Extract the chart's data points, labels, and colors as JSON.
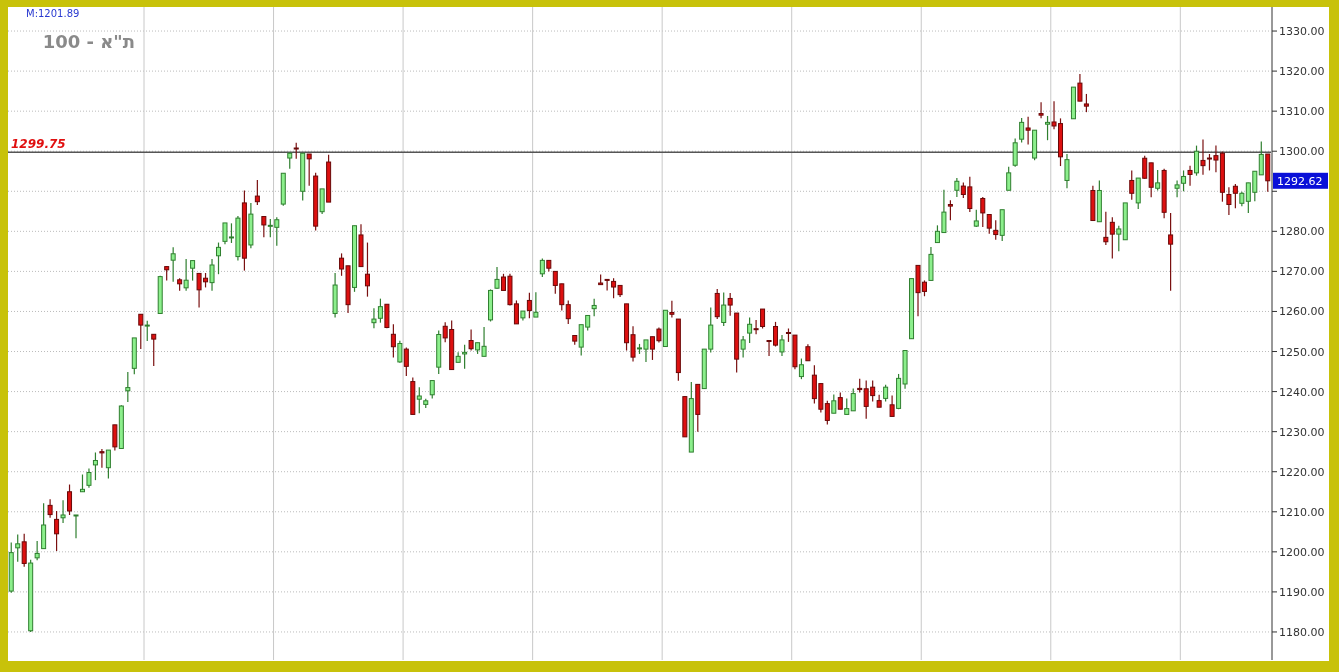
{
  "chart_data": {
    "type": "candlestick",
    "title": "ת\"א - 100",
    "annotations": [
      "M:1201.89",
      "1292.62"
    ],
    "categories": [
      null,
      null,
      null,
      null,
      null,
      null,
      null,
      null,
      null,
      null,
      null,
      null,
      null,
      null,
      null,
      null,
      null,
      null,
      null,
      null,
      null,
      null,
      null,
      null,
      null,
      null,
      null,
      null,
      null,
      null,
      null,
      null,
      null,
      null,
      null,
      null,
      null,
      null,
      null,
      null,
      null,
      null,
      null,
      null,
      null,
      null,
      null,
      null,
      null,
      null,
      null,
      null,
      null,
      null,
      null,
      null,
      null,
      null,
      null,
      null,
      null,
      null,
      null,
      null,
      null,
      null,
      null,
      null,
      null,
      null,
      null,
      null,
      null,
      null,
      null,
      null,
      null,
      null,
      null,
      null,
      null,
      null,
      null,
      null,
      null,
      null,
      null,
      null,
      null,
      null,
      null,
      null,
      null,
      null,
      null,
      null,
      null,
      null,
      null,
      null,
      null,
      null,
      null,
      null,
      null,
      null,
      null,
      null,
      null,
      null,
      null,
      null,
      null,
      null,
      null,
      null,
      null,
      null,
      null,
      null,
      null,
      null,
      null,
      null,
      null,
      null,
      null,
      null,
      null,
      null,
      null,
      null,
      null,
      null,
      null,
      null,
      null,
      null,
      null,
      null,
      null,
      null,
      null,
      null,
      null,
      null,
      null,
      null,
      null,
      null,
      null,
      null,
      null,
      null,
      null,
      null,
      null,
      null,
      null,
      null,
      null,
      null,
      null,
      null,
      null,
      null,
      null,
      null,
      null,
      null,
      null,
      null,
      null,
      null,
      null,
      null,
      null,
      null,
      null,
      null,
      null,
      null,
      null,
      null,
      null,
      null,
      null,
      null,
      null,
      null,
      null,
      null,
      null,
      null,
      null
    ],
    "ohlc": [
      [
        1190.2,
        1202.3,
        1189.8,
        1199.8
      ],
      [
        1201,
        1204.3,
        1197.5,
        1202
      ],
      [
        1202.5,
        1204.5,
        1196.3,
        1197.1
      ],
      [
        1180.3,
        1198,
        1180,
        1197.2
      ],
      [
        1198.5,
        1202.7,
        1197.9,
        1199.6
      ],
      [
        1200.8,
        1212.1,
        1200.8,
        1206.7
      ],
      [
        1211.6,
        1213.1,
        1208.5,
        1209.3
      ],
      [
        1208.1,
        1210.2,
        1200.2,
        1204.5
      ],
      [
        1208.5,
        1212.9,
        1207.2,
        1209.2
      ],
      [
        1215,
        1216.8,
        1209.2,
        1210.2
      ],
      [
        1209,
        1209.2,
        1203.4,
        1209.2
      ],
      [
        1215,
        1219.3,
        1215,
        1215.6
      ],
      [
        1216.6,
        1220.8,
        1216,
        1219.8
      ],
      [
        1221.7,
        1224.8,
        1217.9,
        1222.8
      ],
      [
        1225,
        1225.7,
        1221,
        1224.7
      ],
      [
        1221,
        1225.4,
        1218.3,
        1225.4
      ],
      [
        1231.7,
        1231.7,
        1225.3,
        1226.2
      ],
      [
        1225.8,
        1236.6,
        1225.8,
        1236.4
      ],
      [
        1240.2,
        1244.9,
        1237.4,
        1241
      ],
      [
        1245.8,
        1253.4,
        1244.3,
        1253.4
      ],
      [
        1259.3,
        1259.3,
        1250.6,
        1256.6
      ],
      [
        1256.4,
        1257.7,
        1252.6,
        1256.6
      ],
      [
        1254.3,
        1254.3,
        1246.4,
        1253.1
      ],
      [
        1259.5,
        1268.9,
        1259.5,
        1268.7
      ],
      [
        1271.2,
        1271.3,
        1267.7,
        1270.4
      ],
      [
        1272.8,
        1276,
        1267.4,
        1274.4
      ],
      [
        1267.9,
        1268.3,
        1265.2,
        1266.9
      ],
      [
        1265.9,
        1273.1,
        1265.2,
        1267.8
      ],
      [
        1270.8,
        1272.7,
        1267.7,
        1272.7
      ],
      [
        1269.5,
        1269.5,
        1261,
        1265.4
      ],
      [
        1268.3,
        1269.6,
        1266,
        1267.4
      ],
      [
        1267.2,
        1273.1,
        1265.2,
        1271.6
      ],
      [
        1273.9,
        1277.2,
        1269.3,
        1276
      ],
      [
        1277.5,
        1282.1,
        1276.8,
        1282.1
      ],
      [
        1278.4,
        1282,
        1277.1,
        1278.6
      ],
      [
        1273.7,
        1283.8,
        1272.7,
        1283.3
      ],
      [
        1287.1,
        1290.2,
        1270.2,
        1273.3
      ],
      [
        1276.6,
        1287.1,
        1275.8,
        1284.3
      ],
      [
        1288.8,
        1292.8,
        1286.6,
        1287.4
      ],
      [
        1283.7,
        1283.7,
        1278.5,
        1281.6
      ],
      [
        1281.4,
        1283.1,
        1278.5,
        1281.5
      ],
      [
        1281,
        1283.5,
        1276.4,
        1282.9
      ],
      [
        1286.8,
        1294.5,
        1286.4,
        1294.5
      ],
      [
        1298.3,
        1299.8,
        1295.6,
        1299.5
      ],
      [
        1300.8,
        1302.1,
        1298.1,
        1300.6
      ],
      [
        1290,
        1299.5,
        1287.7,
        1299.5
      ],
      [
        1299.3,
        1299.3,
        1291.4,
        1298.1
      ],
      [
        1293.8,
        1294.6,
        1280.2,
        1281.3
      ],
      [
        1284.9,
        1290.6,
        1284.3,
        1290.6
      ],
      [
        1297.3,
        1299.1,
        1287.3,
        1287.3
      ],
      [
        1259.5,
        1269.6,
        1258.5,
        1266.6
      ],
      [
        1273.3,
        1274.5,
        1268.9,
        1270.6
      ],
      [
        1271.4,
        1271.4,
        1259.6,
        1261.7
      ],
      [
        1266,
        1281.4,
        1264.9,
        1281.4
      ],
      [
        1279.1,
        1281.8,
        1271.2,
        1271.2
      ],
      [
        1269.3,
        1277.2,
        1263.7,
        1266.4
      ],
      [
        1257.2,
        1260.8,
        1255.8,
        1258.1
      ],
      [
        1258.3,
        1263.2,
        1257.2,
        1261.2
      ],
      [
        1261.8,
        1261.8,
        1255.8,
        1256
      ],
      [
        1254.3,
        1256.8,
        1248.5,
        1251.2
      ],
      [
        1247.4,
        1252.7,
        1247.2,
        1252
      ],
      [
        1250.6,
        1251,
        1243.9,
        1246.3
      ],
      [
        1242.5,
        1243.5,
        1234.3,
        1234.3
      ],
      [
        1238.1,
        1241.1,
        1234.6,
        1238.9
      ],
      [
        1236.8,
        1238.2,
        1235.9,
        1237.7
      ],
      [
        1239.2,
        1242.75,
        1238.3,
        1242.75
      ],
      [
        1246.1,
        1255.25,
        1244.4,
        1254.25
      ],
      [
        1256.3,
        1257.3,
        1252.3,
        1253.4
      ],
      [
        1255.5,
        1257.75,
        1245.5,
        1245.5
      ],
      [
        1247.3,
        1249.8,
        1247.3,
        1248.8
      ],
      [
        1249.4,
        1251.7,
        1245.7,
        1249.8
      ],
      [
        1252.75,
        1255.5,
        1250.25,
        1250.7
      ],
      [
        1250.4,
        1252.2,
        1249.4,
        1252.2
      ],
      [
        1248.8,
        1256.1,
        1248.8,
        1251.3
      ],
      [
        1257.9,
        1265.5,
        1257.5,
        1265.25
      ],
      [
        1265.8,
        1271.1,
        1265.7,
        1268
      ],
      [
        1268.6,
        1269.4,
        1265.25,
        1265.25
      ],
      [
        1268.8,
        1269.4,
        1261.5,
        1261.7
      ],
      [
        1261.9,
        1262.75,
        1256.9,
        1256.9
      ],
      [
        1258.4,
        1260.1,
        1257.75,
        1260.1
      ],
      [
        1262.75,
        1264.7,
        1258.3,
        1260.25
      ],
      [
        1258.6,
        1264.8,
        1258.6,
        1259.8
      ],
      [
        1269.4,
        1273.2,
        1268.6,
        1272.75
      ],
      [
        1272.75,
        1272.75,
        1270,
        1270.8
      ],
      [
        1270,
        1270,
        1264.4,
        1266.5
      ],
      [
        1266.9,
        1266.9,
        1260.25,
        1261.7
      ],
      [
        1261.7,
        1262.75,
        1256.9,
        1258.2
      ],
      [
        1254,
        1254,
        1251.7,
        1252.6
      ],
      [
        1251.1,
        1256.7,
        1249,
        1256.7
      ],
      [
        1256.1,
        1259,
        1255.25,
        1259
      ],
      [
        1260.7,
        1263.2,
        1258.8,
        1261.5
      ],
      [
        1267.1,
        1269.2,
        1266.7,
        1266.7
      ],
      [
        1268,
        1268,
        1265.25,
        1267.75
      ],
      [
        1267.5,
        1268.3,
        1263.3,
        1266.1
      ],
      [
        1266.5,
        1266.5,
        1263.6,
        1264.2
      ],
      [
        1261.9,
        1261.9,
        1250.25,
        1252.2
      ],
      [
        1254.2,
        1256.3,
        1247.5,
        1248.6
      ],
      [
        1250.7,
        1251.9,
        1249.4,
        1250.9
      ],
      [
        1250.6,
        1252.9,
        1247.4,
        1252.9
      ],
      [
        1253.7,
        1253.7,
        1247.9,
        1250.6
      ],
      [
        1255.6,
        1256,
        1252.25,
        1252.7
      ],
      [
        1251.25,
        1260.3,
        1251.25,
        1260.3
      ],
      [
        1259.75,
        1262.7,
        1258.5,
        1259.3
      ],
      [
        1258.1,
        1258.1,
        1242.7,
        1244.75
      ],
      [
        1238.75,
        1238.9,
        1228.7,
        1228.7
      ],
      [
        1224.9,
        1242.4,
        1224.9,
        1238.25
      ],
      [
        1241.8,
        1241.8,
        1230,
        1234.3
      ],
      [
        1240.75,
        1250.6,
        1240.75,
        1250.6
      ],
      [
        1250.6,
        1261,
        1249.75,
        1256.6
      ],
      [
        1264.5,
        1265.6,
        1258.1,
        1258.7
      ],
      [
        1257.25,
        1264.75,
        1256.4,
        1261.6
      ],
      [
        1263.25,
        1264.6,
        1258.9,
        1261.6
      ],
      [
        1259.6,
        1259.6,
        1244.75,
        1248.1
      ],
      [
        1250.6,
        1253.9,
        1248.5,
        1252.9
      ],
      [
        1254.6,
        1258.5,
        1252.1,
        1256.8
      ],
      [
        1255.7,
        1257.9,
        1254.3,
        1255.5
      ],
      [
        1260.6,
        1260.6,
        1255.75,
        1256.25
      ],
      [
        1252.75,
        1252.75,
        1248.9,
        1252.6
      ],
      [
        1256.25,
        1257.4,
        1251.25,
        1251.6
      ],
      [
        1249.9,
        1254.1,
        1248.9,
        1252.9
      ],
      [
        1254.75,
        1255.75,
        1252.4,
        1254.6
      ],
      [
        1254.1,
        1254.1,
        1245.6,
        1246.2
      ],
      [
        1243.75,
        1248.25,
        1243.1,
        1246.7
      ],
      [
        1251.2,
        1251.8,
        1247.7,
        1247.7
      ],
      [
        1244.1,
        1246.6,
        1237,
        1238.25
      ],
      [
        1242,
        1242,
        1234.75,
        1235.6
      ],
      [
        1237,
        1237.7,
        1231.8,
        1232.8
      ],
      [
        1234.6,
        1239.3,
        1234.6,
        1237.7
      ],
      [
        1238.5,
        1239.75,
        1235.6,
        1235.6
      ],
      [
        1234.3,
        1238.25,
        1234.3,
        1235.75
      ],
      [
        1235.2,
        1240.75,
        1235.2,
        1239.5
      ],
      [
        1240.8,
        1243.2,
        1239.8,
        1240.5
      ],
      [
        1240.7,
        1242.75,
        1233.2,
        1236.3
      ],
      [
        1241.1,
        1242.75,
        1237.5,
        1239
      ],
      [
        1237.75,
        1239.2,
        1236.1,
        1236.1
      ],
      [
        1238.3,
        1241.7,
        1237.5,
        1241.1
      ],
      [
        1236.7,
        1239,
        1233.8,
        1233.8
      ],
      [
        1235.8,
        1244.4,
        1235.6,
        1243.3
      ],
      [
        1241.9,
        1250.25,
        1240.7,
        1250.25
      ],
      [
        1253.2,
        1268.2,
        1253.2,
        1268.2
      ],
      [
        1271.5,
        1271.5,
        1258.8,
        1264.7
      ],
      [
        1267.3,
        1267.75,
        1263.8,
        1265
      ],
      [
        1267.75,
        1276.1,
        1267.75,
        1274.25
      ],
      [
        1277.2,
        1281.5,
        1277.2,
        1280
      ],
      [
        1279.7,
        1290.4,
        1279.7,
        1284.8
      ],
      [
        1286.7,
        1287.75,
        1282.75,
        1286.3
      ],
      [
        1290.25,
        1293.3,
        1288.6,
        1292.5
      ],
      [
        1291.3,
        1292.2,
        1288.3,
        1289.2
      ],
      [
        1291.1,
        1293.6,
        1284.8,
        1285.7
      ],
      [
        1281.3,
        1285.4,
        1281.1,
        1282.6
      ],
      [
        1288.2,
        1288.6,
        1281.1,
        1284.6
      ],
      [
        1284.2,
        1284.2,
        1279.4,
        1280.8
      ],
      [
        1280.25,
        1282.75,
        1277.9,
        1279.2
      ],
      [
        1279,
        1285.4,
        1277.6,
        1285.4
      ],
      [
        1290.25,
        1296.1,
        1290.25,
        1294.6
      ],
      [
        1296.5,
        1303.2,
        1296.1,
        1302.1
      ],
      [
        1303,
        1308.3,
        1302.2,
        1307.2
      ],
      [
        1305.8,
        1308.6,
        1301.7,
        1305.25
      ],
      [
        1298.3,
        1305.25,
        1297.75,
        1305.25
      ],
      [
        1309.4,
        1312.2,
        1308.2,
        1309
      ],
      [
        1306.75,
        1308.8,
        1302.75,
        1307.2
      ],
      [
        1307.3,
        1312.5,
        1305.5,
        1306.3
      ],
      [
        1306.9,
        1308.2,
        1296.3,
        1298.6
      ],
      [
        1292.7,
        1299.3,
        1290.75,
        1297.9
      ],
      [
        1308.1,
        1316,
        1308.1,
        1316
      ],
      [
        1317,
        1319.3,
        1312.5,
        1312.5
      ],
      [
        1311.8,
        1314.3,
        1309.75,
        1311.25
      ],
      [
        1290.2,
        1291.4,
        1282.7,
        1282.7
      ],
      [
        1282.4,
        1292.7,
        1282.4,
        1290.2
      ],
      [
        1278.5,
        1284.9,
        1276.6,
        1277.4
      ],
      [
        1282.25,
        1283.5,
        1273.25,
        1279.3
      ],
      [
        1279.3,
        1281.4,
        1275,
        1280.6
      ],
      [
        1277.9,
        1287.1,
        1277.9,
        1287.1
      ],
      [
        1292.7,
        1295.2,
        1287.9,
        1289.5
      ],
      [
        1287.1,
        1293.3,
        1285.6,
        1293.3
      ],
      [
        1298.25,
        1298.9,
        1293.1,
        1293.25
      ],
      [
        1297.1,
        1297.1,
        1288.5,
        1291
      ],
      [
        1290.75,
        1295.3,
        1290.2,
        1292.1
      ],
      [
        1295.2,
        1295.6,
        1283.25,
        1284.75
      ],
      [
        1279.1,
        1284.6,
        1265.2,
        1276.8
      ],
      [
        1290.75,
        1292.7,
        1288.5,
        1291.6
      ],
      [
        1292,
        1295.2,
        1290,
        1293.7
      ],
      [
        1295.2,
        1296.4,
        1291.4,
        1294.2
      ],
      [
        1294.6,
        1301.4,
        1293.9,
        1300
      ],
      [
        1297.7,
        1302.9,
        1294.1,
        1296.4
      ],
      [
        1298.3,
        1299.3,
        1295.2,
        1298.1
      ],
      [
        1298.9,
        1301.4,
        1294.75,
        1297.8
      ],
      [
        1299.5,
        1299.9,
        1287.4,
        1289.75
      ],
      [
        1289.2,
        1291,
        1284.1,
        1286.7
      ],
      [
        1291.25,
        1291.8,
        1285.75,
        1289.5
      ],
      [
        1287,
        1289.9,
        1286.25,
        1289.5
      ],
      [
        1287.5,
        1292.1,
        1284.6,
        1292.1
      ],
      [
        1289.75,
        1295,
        1287.5,
        1295
      ],
      [
        1294.1,
        1302.4,
        1294.1,
        1299.2
      ],
      [
        1299.3,
        1299.3,
        1289.9,
        1292.62
      ]
    ],
    "ylim": [
      1173,
      1336
    ],
    "yticks": [
      {
        "value": 1180,
        "label": "1180.00"
      },
      {
        "value": 1190,
        "label": "1190.00"
      },
      {
        "value": 1200,
        "label": "1200.00"
      },
      {
        "value": 1210,
        "label": "1210.00"
      },
      {
        "value": 1220,
        "label": "1220.00"
      },
      {
        "value": 1230,
        "label": "1230.00"
      },
      {
        "value": 1240,
        "label": "1240.00"
      },
      {
        "value": 1250,
        "label": "1250.00"
      },
      {
        "value": 1260,
        "label": "1260.00"
      },
      {
        "value": 1270,
        "label": "1270.00"
      },
      {
        "value": 1280,
        "label": "1280.00"
      },
      {
        "value": 1290,
        "label": null
      },
      {
        "value": 1300,
        "label": "1300.00"
      },
      {
        "value": 1310,
        "label": "1310.00"
      },
      {
        "value": 1320,
        "label": "1320.00"
      },
      {
        "value": 1330,
        "label": "1330.00"
      }
    ],
    "grid": true,
    "ref_lines": [
      {
        "axis": "y",
        "value": 1299.75,
        "label": "1299.75",
        "color": "#555555"
      }
    ]
  }
}
